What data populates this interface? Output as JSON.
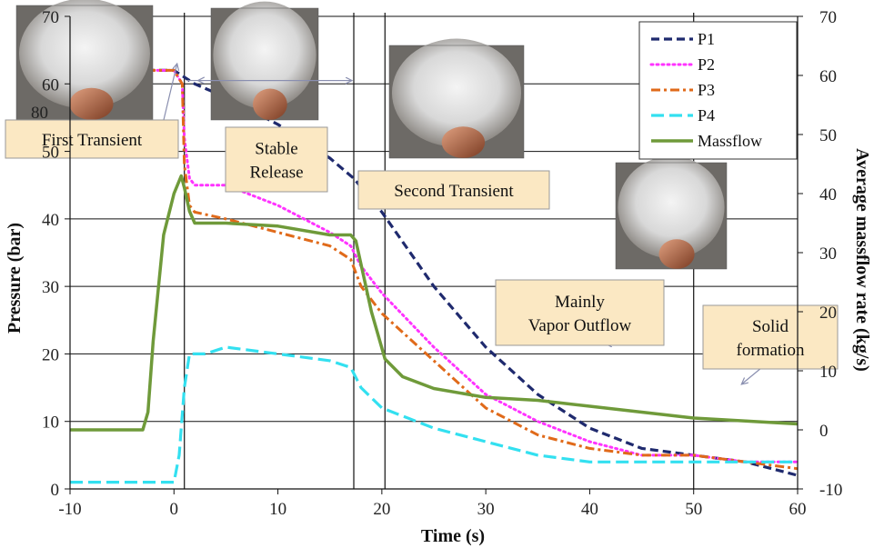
{
  "chart_data": {
    "type": "line",
    "xlabel": "Time (s)",
    "ylabel": "Pressure (bar)",
    "y2label": "Average massflow rate (kg/s)",
    "xlim": [
      -10,
      60
    ],
    "ylim": [
      0,
      70
    ],
    "y2lim": [
      -10,
      70
    ],
    "x_ticks": [
      -10,
      0,
      10,
      20,
      30,
      40,
      50,
      60
    ],
    "y_ticks": [
      0,
      10,
      20,
      30,
      40,
      50,
      60,
      70
    ],
    "y2_ticks": [
      -10,
      0,
      10,
      20,
      30,
      40,
      50,
      60,
      70
    ],
    "grid": true,
    "legend_position": "top-right",
    "colors": {
      "P1": "#1f2a6e",
      "P2": "#ff33ff",
      "P3": "#e06a1a",
      "P4": "#33e0f0",
      "Massflow": "#6f9a3a"
    },
    "vertical_markers": [
      1,
      17.3,
      20.3,
      50
    ],
    "series": [
      {
        "name": "P1",
        "axis": "left",
        "style": "dash",
        "x": [
          -10,
          -5,
          0,
          1,
          2,
          5,
          10,
          15,
          17.3,
          20,
          25,
          30,
          35,
          40,
          45,
          50,
          55,
          60
        ],
        "y": [
          62,
          62,
          62,
          61,
          60,
          58,
          54,
          49,
          46,
          41,
          30,
          21,
          14,
          9,
          6,
          5,
          4,
          2
        ]
      },
      {
        "name": "P2",
        "axis": "left",
        "style": "dot",
        "x": [
          -10,
          -5,
          0,
          0.8,
          1,
          1.5,
          2,
          5,
          10,
          15,
          17,
          18,
          20,
          25,
          30,
          35,
          40,
          45,
          50,
          55,
          60
        ],
        "y": [
          62,
          62,
          62,
          60,
          52,
          46,
          45,
          45,
          42,
          38,
          36,
          33,
          29,
          21,
          14,
          10,
          7,
          5,
          5,
          4,
          4
        ]
      },
      {
        "name": "P3",
        "axis": "left",
        "style": "dashdot",
        "x": [
          -10,
          -5,
          0,
          0.8,
          1,
          1.5,
          2,
          5,
          10,
          15,
          17,
          18,
          20,
          25,
          30,
          35,
          40,
          45,
          50,
          55,
          60
        ],
        "y": [
          62,
          62,
          62,
          60,
          48,
          42,
          41,
          40,
          38,
          36,
          34,
          30,
          26,
          19,
          12,
          8,
          6,
          5,
          5,
          4,
          3
        ]
      },
      {
        "name": "P4",
        "axis": "left",
        "style": "longdash",
        "x": [
          -10,
          -5,
          0,
          0.5,
          1,
          1.5,
          3,
          5,
          10,
          15,
          17,
          18,
          20,
          25,
          30,
          35,
          40,
          45,
          50,
          55,
          60
        ],
        "y": [
          1,
          1,
          1,
          5,
          15,
          20,
          20,
          21,
          20,
          19,
          18,
          15,
          12,
          9,
          7,
          5,
          4,
          4,
          4,
          4,
          4
        ]
      },
      {
        "name": "Massflow",
        "axis": "right",
        "style": "solid",
        "x": [
          -10,
          -5,
          -3,
          -2.5,
          -2,
          -1,
          0,
          0.7,
          1,
          1.5,
          2,
          5,
          10,
          15,
          17,
          17.5,
          18,
          19,
          20.3,
          22,
          25,
          30,
          35,
          40,
          45,
          50,
          55,
          60
        ],
        "y": [
          0,
          0,
          0,
          3,
          15,
          33,
          40,
          43,
          41,
          37,
          35,
          35,
          34.5,
          33,
          33,
          32,
          28,
          20,
          12,
          9,
          7,
          5.5,
          5,
          4,
          3,
          2,
          1.5,
          1
        ]
      }
    ],
    "annotations": [
      {
        "id": "first-transient",
        "lines": [
          "First Transient"
        ]
      },
      {
        "id": "stable-release",
        "lines": [
          "Stable",
          "Release"
        ]
      },
      {
        "id": "second-transient",
        "lines": [
          "Second Transient"
        ]
      },
      {
        "id": "vapor-outflow",
        "lines": [
          "Mainly",
          "Vapor Outflow"
        ]
      },
      {
        "id": "solid-formation",
        "lines": [
          "Solid",
          "formation"
        ]
      }
    ],
    "photo_labels": [
      "80"
    ]
  }
}
